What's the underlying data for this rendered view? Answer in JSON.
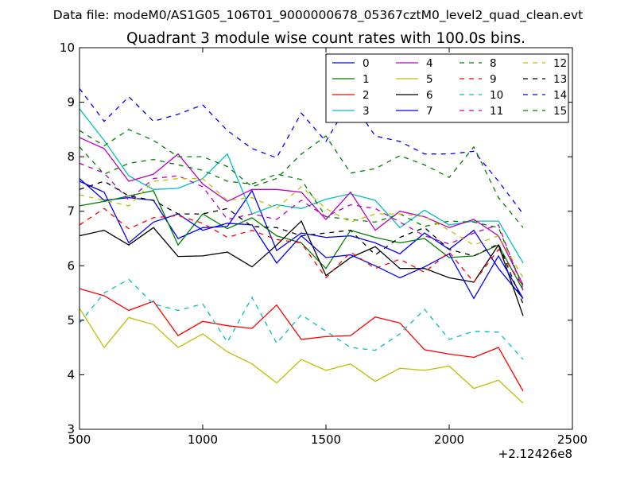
{
  "chart_data": {
    "type": "line",
    "suptitle": "Data file: modeM0/AS1G05_106T01_9000000678_05367cztM0_level2_quad_clean.evt",
    "title": "Quadrant 3 module wise count rates with 100.0s bins.",
    "xlabel": "",
    "ylabel": "",
    "xlim": [
      500,
      2500
    ],
    "ylim": [
      3,
      10
    ],
    "x_offset_label": "+2.12426e8",
    "xticks": [
      500,
      1000,
      1500,
      2000,
      2500
    ],
    "yticks": [
      3,
      4,
      5,
      6,
      7,
      8,
      9,
      10
    ],
    "xtick_labels": [
      "500",
      "1000",
      "1500",
      "2000",
      "2500"
    ],
    "ytick_labels": [
      "3",
      "4",
      "5",
      "6",
      "7",
      "8",
      "9",
      "10"
    ],
    "legend_position": "top-right",
    "x": [
      500,
      600,
      700,
      800,
      900,
      1000,
      1100,
      1200,
      1300,
      1400,
      1500,
      1600,
      1700,
      1800,
      1900,
      2000,
      2100,
      2200,
      2300
    ],
    "series": [
      {
        "name": "0",
        "color": "#0000ff",
        "style": "solid",
        "values": [
          7.6,
          7.2,
          7.25,
          7.2,
          6.5,
          6.7,
          6.72,
          7.38,
          6.28,
          6.6,
          6.52,
          6.55,
          6.42,
          6.22,
          6.6,
          6.3,
          6.65,
          5.95,
          5.4
        ]
      },
      {
        "name": "1",
        "color": "#008000",
        "style": "solid",
        "values": [
          7.1,
          7.18,
          7.28,
          7.38,
          6.38,
          6.95,
          6.68,
          6.88,
          6.55,
          6.42,
          5.95,
          6.65,
          6.52,
          6.42,
          6.5,
          6.15,
          6.18,
          6.38,
          5.55
        ]
      },
      {
        "name": "2",
        "color": "#ff0000",
        "style": "solid",
        "values": [
          5.58,
          5.45,
          5.18,
          5.35,
          4.72,
          4.98,
          4.9,
          4.85,
          5.28,
          4.65,
          4.7,
          4.72,
          5.06,
          4.95,
          4.46,
          4.38,
          4.32,
          4.5,
          3.7
        ]
      },
      {
        "name": "3",
        "color": "#00bfbf",
        "style": "solid",
        "values": [
          8.88,
          8.3,
          7.65,
          7.4,
          7.42,
          7.6,
          8.05,
          6.95,
          7.12,
          7.05,
          7.22,
          7.32,
          7.2,
          6.7,
          7.02,
          6.75,
          6.82,
          6.82,
          6.05
        ]
      },
      {
        "name": "4",
        "color": "#bf00bf",
        "style": "solid",
        "values": [
          8.35,
          8.15,
          7.55,
          7.68,
          8.05,
          7.5,
          7.18,
          7.4,
          7.4,
          7.35,
          6.85,
          7.35,
          6.65,
          7.0,
          6.9,
          6.7,
          6.85,
          6.55,
          5.65
        ]
      },
      {
        "name": "5",
        "color": "#bfbf00",
        "style": "solid",
        "values": [
          5.22,
          4.5,
          5.05,
          4.92,
          4.5,
          4.75,
          4.42,
          4.2,
          3.85,
          4.28,
          4.08,
          4.2,
          3.88,
          4.12,
          4.08,
          4.16,
          3.75,
          3.9,
          3.48
        ]
      },
      {
        "name": "6",
        "color": "#000000",
        "style": "solid",
        "values": [
          6.55,
          6.65,
          6.38,
          6.7,
          6.17,
          6.18,
          6.25,
          5.98,
          6.38,
          6.82,
          5.82,
          6.15,
          6.35,
          5.95,
          5.95,
          5.78,
          5.7,
          6.38,
          5.08
        ]
      },
      {
        "name": "7",
        "color": "#0000ff",
        "style": "solid",
        "values": [
          7.55,
          7.35,
          6.42,
          6.8,
          6.95,
          6.65,
          6.78,
          6.75,
          6.05,
          6.55,
          6.15,
          6.2,
          6.0,
          5.78,
          5.98,
          6.22,
          5.4,
          6.18,
          5.4
        ]
      },
      {
        "name": "8",
        "color": "#008000",
        "style": "dashed",
        "values": [
          8.18,
          7.68,
          7.88,
          7.95,
          7.85,
          7.75,
          7.55,
          7.5,
          7.68,
          7.58,
          6.9,
          6.85,
          6.8,
          6.95,
          6.72,
          6.82,
          6.8,
          6.7,
          5.6
        ]
      },
      {
        "name": "9",
        "color": "#ff0000",
        "style": "dashed",
        "values": [
          6.75,
          7.05,
          6.68,
          6.88,
          6.92,
          6.78,
          6.52,
          6.65,
          6.48,
          6.42,
          5.78,
          6.25,
          5.95,
          6.12,
          5.88,
          6.25,
          5.7,
          6.3,
          5.62
        ]
      },
      {
        "name": "10",
        "color": "#00bfbf",
        "style": "dashed",
        "values": [
          4.95,
          5.5,
          5.75,
          5.3,
          5.18,
          5.3,
          4.6,
          5.42,
          4.58,
          5.1,
          4.8,
          4.5,
          4.45,
          4.75,
          5.2,
          4.65,
          4.8,
          4.78,
          4.28
        ]
      },
      {
        "name": "11",
        "color": "#bf00bf",
        "style": "dashed",
        "values": [
          7.88,
          7.7,
          7.2,
          7.6,
          7.65,
          7.45,
          6.85,
          6.95,
          6.85,
          7.2,
          6.9,
          7.12,
          7.05,
          6.8,
          6.55,
          6.4,
          6.6,
          6.75,
          5.55
        ]
      },
      {
        "name": "12",
        "color": "#bfbf00",
        "style": "dashed",
        "values": [
          7.3,
          7.2,
          7.1,
          7.55,
          7.6,
          7.6,
          7.2,
          7.25,
          7.05,
          7.45,
          7.05,
          6.8,
          6.95,
          6.95,
          6.9,
          6.65,
          6.38,
          6.55,
          5.78
        ]
      },
      {
        "name": "13",
        "color": "#000000",
        "style": "dashed",
        "values": [
          7.4,
          7.55,
          7.28,
          7.2,
          6.95,
          6.95,
          7.05,
          6.72,
          6.7,
          6.55,
          6.6,
          6.65,
          6.2,
          6.52,
          6.7,
          6.3,
          6.18,
          6.4,
          5.3
        ]
      },
      {
        "name": "14",
        "color": "#0000ff",
        "style": "dashed",
        "values": [
          9.25,
          8.65,
          9.1,
          8.65,
          8.78,
          8.95,
          8.48,
          8.15,
          7.98,
          8.8,
          8.28,
          9.05,
          8.38,
          8.28,
          8.05,
          8.05,
          8.1,
          7.55,
          6.95
        ]
      },
      {
        "name": "15",
        "color": "#008000",
        "style": "dashed",
        "values": [
          8.48,
          8.2,
          8.5,
          8.3,
          8.0,
          8.0,
          7.82,
          7.45,
          7.6,
          8.05,
          8.38,
          7.7,
          7.78,
          8.02,
          7.85,
          7.62,
          8.18,
          7.25,
          6.7
        ]
      }
    ]
  }
}
